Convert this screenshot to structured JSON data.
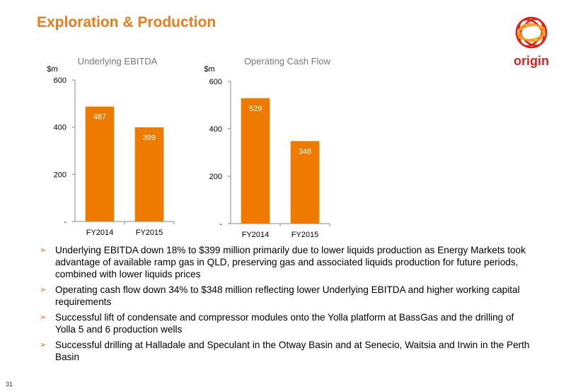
{
  "title": "Exploration & Production",
  "logo": {
    "text": "origin",
    "color": "#e0201b",
    "accent": "#f6a01a"
  },
  "brand_color": "#ef7a1a",
  "chart_data": [
    {
      "type": "bar",
      "title": "Underlying EBITDA",
      "ylabel": "$m",
      "categories": [
        "FY2014",
        "FY2015"
      ],
      "values": [
        487,
        399
      ],
      "ylim": [
        0,
        600
      ],
      "yticks": [
        0,
        200,
        400,
        600
      ],
      "ytick_labels": [
        "-",
        "200",
        "400",
        "600"
      ],
      "color": "#ef7a00",
      "data_labels": [
        "487",
        "399"
      ],
      "grid": false,
      "legend": "none"
    },
    {
      "type": "bar",
      "title": "Operating Cash Flow",
      "ylabel": "$m",
      "categories": [
        "FY2014",
        "FY2015"
      ],
      "values": [
        529,
        348
      ],
      "ylim": [
        0,
        600
      ],
      "yticks": [
        0,
        200,
        400,
        600
      ],
      "ytick_labels": [
        "-",
        "200",
        "400",
        "600"
      ],
      "color": "#ef7a00",
      "data_labels": [
        "529",
        "348"
      ],
      "grid": false,
      "legend": "none"
    }
  ],
  "bullets": [
    "Underlying EBITDA down 18% to $399 million primarily due to lower liquids production as Energy Markets took advantage of available ramp gas in QLD, preserving gas and associated liquids production for future periods, combined with lower liquids prices",
    "Operating cash flow down 34% to $348 million reflecting lower Underlying EBITDA and higher working capital requirements",
    "Successful lift of condensate and compressor modules onto the Yolla platform at BassGas and the drilling of Yolla 5 and 6 production wells",
    "Successful drilling at Halladale and Speculant in the Otway Basin and at Senecio, Waitsia and Irwin in the Perth Basin"
  ],
  "page_number": "31"
}
